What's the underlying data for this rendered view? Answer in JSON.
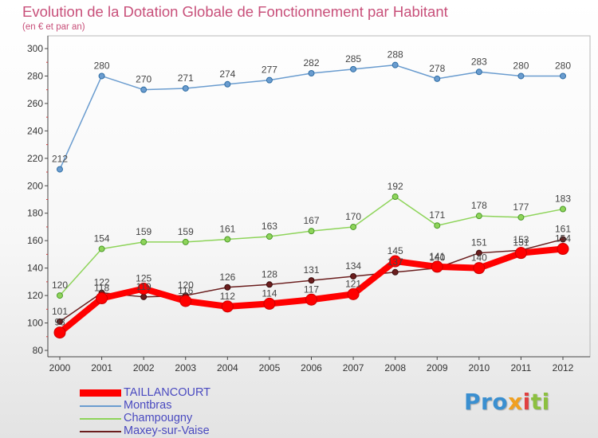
{
  "page": {
    "title": "Evolution de la Dotation Globale de Fonctionnement par Habitant",
    "subtitle": "(en € et par an)"
  },
  "logo": {
    "text": "Proxiti",
    "parts": [
      "Pro",
      "x",
      "i",
      "ti"
    ]
  },
  "chart_data": {
    "type": "line",
    "title": "Evolution de la Dotation Globale de Fonctionnement par Habitant",
    "subtitle": "(en € et par an)",
    "xlabel": "",
    "ylabel": "",
    "categories": [
      "2000",
      "2001",
      "2002",
      "2003",
      "2004",
      "2005",
      "2006",
      "2007",
      "2008",
      "2009",
      "2010",
      "2011",
      "2012"
    ],
    "ylim": [
      80,
      300
    ],
    "yticks": [
      80,
      100,
      120,
      140,
      160,
      180,
      200,
      220,
      240,
      260,
      280,
      300
    ],
    "grid": false,
    "legend": "bottom-left",
    "series": [
      {
        "name": "Montbras",
        "color": "#6a9ccf",
        "values": [
          212,
          280,
          270,
          271,
          274,
          277,
          282,
          285,
          288,
          278,
          283,
          280,
          280
        ]
      },
      {
        "name": "Champougny",
        "color": "#8ed45a",
        "values": [
          120,
          154,
          159,
          159,
          161,
          163,
          167,
          170,
          192,
          171,
          178,
          177,
          183
        ]
      },
      {
        "name": "Maxey-sur-Vaise",
        "color": "#6b1e1e",
        "values": [
          101,
          122,
          119,
          120,
          126,
          128,
          131,
          134,
          137,
          140,
          151,
          153,
          161
        ]
      },
      {
        "name": "TAILLANCOURT",
        "color": "#ff0000",
        "values": [
          93,
          118,
          125,
          116,
          112,
          114,
          117,
          121,
          145,
          141,
          140,
          151,
          154
        ]
      }
    ]
  }
}
